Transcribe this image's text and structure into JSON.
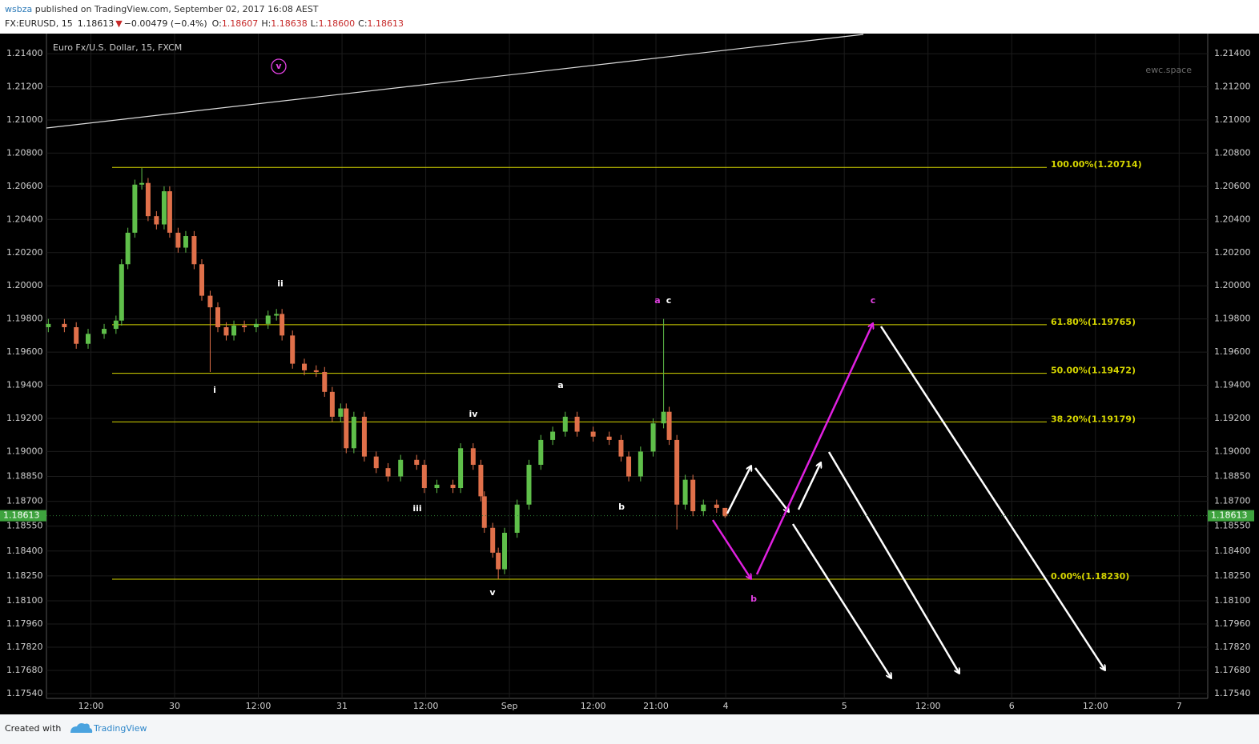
{
  "header": {
    "author": "wsbza",
    "published": " published on TradingView.com, September 02, 2017 16:08 AEST",
    "symbol": "FX:EURUSD, 15",
    "price": "1.18613",
    "arrow": "▼",
    "change": "−0.00479 (−0.4%)",
    "o_label": "O:",
    "o": "1.18607",
    "h_label": "H:",
    "h": "1.18638",
    "l_label": "L:",
    "l": "1.18600",
    "c_label": "C:",
    "c": "1.18613"
  },
  "footer": {
    "created": "Created with",
    "brand": "TradingView"
  },
  "chart_data": {
    "type": "candlestick",
    "title": "Euro Fx/U.S. Dollar, 15, FXCM",
    "watermark": "ewc.space",
    "up_color": "#5fbf4a",
    "down_color": "#e0704a",
    "grid": true,
    "x": [
      5.9,
      8.2,
      9.9,
      11.6,
      13.9,
      15.6,
      16.4,
      17.3,
      18.3,
      19.3,
      20.2,
      21.4,
      22.5,
      23.3,
      24.5,
      25.6,
      26.8,
      27.9,
      29.1,
      30.2,
      31.4,
      32.5,
      34.0,
      35.7,
      37.4,
      38.6,
      39.4,
      40.9,
      42.6,
      44.3,
      45.5,
      46.6,
      47.8,
      48.6,
      49.7,
      51.2,
      52.9,
      54.6,
      56.4,
      58.7,
      59.8,
      61.6,
      63.9,
      65.0,
      66.8,
      67.9,
      68.4,
      69.6,
      70.4,
      71.3,
      73.1,
      74.8,
      76.5,
      78.2,
      80.0,
      81.7,
      84.0,
      86.3,
      88.0,
      89.1,
      90.8,
      92.6,
      94.1,
      94.9,
      96.0,
      97.2,
      98.3,
      99.8,
      101.7,
      102.9
    ],
    "open": [
      1.1975,
      1.1977,
      1.1975,
      1.1965,
      1.1971,
      1.1974,
      1.1979,
      1.2013,
      1.2032,
      1.2061,
      1.2062,
      1.2042,
      1.2037,
      1.2057,
      1.2032,
      1.2023,
      1.203,
      1.2013,
      1.1994,
      1.1987,
      1.1975,
      1.197,
      1.1976,
      1.1975,
      1.1977,
      1.1982,
      1.1983,
      1.197,
      1.1953,
      1.1949,
      1.1948,
      1.1936,
      1.1921,
      1.1926,
      1.1902,
      1.1921,
      1.1897,
      1.189,
      1.1885,
      1.1895,
      1.1892,
      1.1878,
      1.188,
      1.1878,
      1.1902,
      1.1892,
      1.1873,
      1.1854,
      1.1839,
      1.1829,
      1.1851,
      1.1868,
      1.1892,
      1.1907,
      1.1912,
      1.1921,
      1.1912,
      1.1909,
      1.1907,
      1.1897,
      1.1885,
      1.19,
      1.1917,
      1.1924,
      1.1907,
      1.1868,
      1.1883,
      1.1864,
      1.1868,
      1.1866
    ],
    "high": [
      1.198,
      1.198,
      1.1978,
      1.1974,
      1.1977,
      1.1982,
      1.2016,
      1.2035,
      1.2064,
      1.2071,
      1.2065,
      1.2045,
      1.206,
      1.206,
      1.2035,
      1.2033,
      1.2033,
      1.2016,
      1.1997,
      1.199,
      1.1978,
      1.1979,
      1.1979,
      1.198,
      1.1985,
      1.1986,
      1.1986,
      1.1973,
      1.1956,
      1.1952,
      1.1951,
      1.1939,
      1.1929,
      1.1929,
      1.1924,
      1.1924,
      1.19,
      1.1893,
      1.1898,
      1.1898,
      1.1895,
      1.1883,
      1.1883,
      1.1905,
      1.1905,
      1.1895,
      1.1876,
      1.1857,
      1.1842,
      1.1854,
      1.1871,
      1.1895,
      1.191,
      1.1915,
      1.1924,
      1.1924,
      1.1915,
      1.1912,
      1.191,
      1.19,
      1.1903,
      1.192,
      1.198,
      1.1927,
      1.191,
      1.1886,
      1.1886,
      1.1871,
      1.1871,
      1.1864
    ],
    "low": [
      1.1972,
      1.1972,
      1.1962,
      1.1962,
      1.1968,
      1.1971,
      1.1976,
      1.201,
      1.2029,
      1.2058,
      1.2039,
      1.2034,
      1.2034,
      1.2029,
      1.202,
      1.202,
      1.201,
      1.1991,
      1.1948,
      1.1972,
      1.1967,
      1.1967,
      1.1972,
      1.1972,
      1.1974,
      1.1979,
      1.1967,
      1.195,
      1.1946,
      1.1945,
      1.1933,
      1.1918,
      1.1918,
      1.1899,
      1.1899,
      1.1894,
      1.1887,
      1.1882,
      1.1882,
      1.1889,
      1.1875,
      1.1875,
      1.1875,
      1.1875,
      1.1889,
      1.187,
      1.1851,
      1.1836,
      1.1823,
      1.1826,
      1.1848,
      1.1865,
      1.1889,
      1.1904,
      1.1909,
      1.1909,
      1.1906,
      1.1904,
      1.1894,
      1.1882,
      1.1882,
      1.1897,
      1.1914,
      1.1904,
      1.1853,
      1.1865,
      1.1861,
      1.1861,
      1.1863,
      1.186
    ],
    "close": [
      1.1977,
      1.1975,
      1.1965,
      1.1971,
      1.1974,
      1.1979,
      1.2013,
      1.2032,
      1.2061,
      1.2062,
      1.2042,
      1.2037,
      1.2057,
      1.2032,
      1.2023,
      1.203,
      1.2013,
      1.1994,
      1.1987,
      1.1975,
      1.197,
      1.1976,
      1.1975,
      1.1977,
      1.1982,
      1.1983,
      1.197,
      1.1953,
      1.1949,
      1.1948,
      1.1936,
      1.1921,
      1.1926,
      1.1902,
      1.1921,
      1.1897,
      1.189,
      1.1885,
      1.1895,
      1.1892,
      1.1878,
      1.188,
      1.1878,
      1.1902,
      1.1892,
      1.1873,
      1.1854,
      1.1839,
      1.1829,
      1.1851,
      1.1868,
      1.1892,
      1.1907,
      1.1912,
      1.1921,
      1.1912,
      1.1909,
      1.1907,
      1.1897,
      1.1885,
      1.19,
      1.1917,
      1.1924,
      1.1907,
      1.1868,
      1.1883,
      1.1864,
      1.1868,
      1.1866,
      1.1861
    ],
    "xlim": [
      5.63,
      172.1
    ],
    "xticks": [
      {
        "value": 12,
        "label": "12:00"
      },
      {
        "value": 24,
        "label": "30"
      },
      {
        "value": 36,
        "label": "12:00"
      },
      {
        "value": 48,
        "label": "31"
      },
      {
        "value": 60,
        "label": "12:00"
      },
      {
        "value": 72,
        "label": "Sep"
      },
      {
        "value": 84,
        "label": "12:00"
      },
      {
        "value": 93,
        "label": "21:00"
      },
      {
        "value": 103,
        "label": "4"
      },
      {
        "value": 120,
        "label": "5"
      },
      {
        "value": 132,
        "label": "12:00"
      },
      {
        "value": 144,
        "label": "6"
      },
      {
        "value": 156,
        "label": "12:00"
      },
      {
        "value": 168,
        "label": "7"
      }
    ],
    "ylim": [
      1.17511,
      1.21521
    ],
    "yticks": [
      {
        "value": 1.214,
        "label": "1.21400"
      },
      {
        "value": 1.212,
        "label": "1.21200"
      },
      {
        "value": 1.21,
        "label": "1.21000"
      },
      {
        "value": 1.208,
        "label": "1.20800"
      },
      {
        "value": 1.206,
        "label": "1.20600"
      },
      {
        "value": 1.204,
        "label": "1.20400"
      },
      {
        "value": 1.202,
        "label": "1.20200"
      },
      {
        "value": 1.2,
        "label": "1.20000"
      },
      {
        "value": 1.198,
        "label": "1.19800"
      },
      {
        "value": 1.196,
        "label": "1.19600"
      },
      {
        "value": 1.194,
        "label": "1.19400"
      },
      {
        "value": 1.192,
        "label": "1.19200"
      },
      {
        "value": 1.19,
        "label": "1.19000"
      },
      {
        "value": 1.1885,
        "label": "1.18850"
      },
      {
        "value": 1.187,
        "label": "1.18700"
      },
      {
        "value": 1.1855,
        "label": "1.18550"
      },
      {
        "value": 1.184,
        "label": "1.18400"
      },
      {
        "value": 1.1825,
        "label": "1.18250"
      },
      {
        "value": 1.181,
        "label": "1.18100"
      },
      {
        "value": 1.1796,
        "label": "1.17960"
      },
      {
        "value": 1.1782,
        "label": "1.17820"
      },
      {
        "value": 1.1768,
        "label": "1.17680"
      },
      {
        "value": 1.1754,
        "label": "1.17540"
      }
    ],
    "last_price": {
      "value": 1.18613,
      "label": "1.18613"
    },
    "fib_color": "#d6d600",
    "fib_levels": [
      {
        "value": 1.20714,
        "label": "100.00%(1.20714)"
      },
      {
        "value": 1.19765,
        "label": "61.80%(1.19765)"
      },
      {
        "value": 1.19472,
        "label": "50.00%(1.19472)"
      },
      {
        "value": 1.19179,
        "label": "38.20%(1.19179)"
      },
      {
        "value": 1.1823,
        "label": "0.00%(1.18230)"
      }
    ],
    "annotations": [
      {
        "text": "v",
        "color": "#e040e0"
      },
      {
        "text": "ii",
        "color": "#ffffff"
      },
      {
        "text": "i",
        "color": "#ffffff"
      },
      {
        "text": "iii",
        "color": "#ffffff"
      },
      {
        "text": "iv",
        "color": "#ffffff"
      },
      {
        "text": "v",
        "color": "#ffffff"
      },
      {
        "text": "a",
        "color": "#ffffff"
      },
      {
        "text": "b",
        "color": "#ffffff"
      },
      {
        "text": "a",
        "color": "#e040e0"
      },
      {
        "text": "c",
        "color": "#ffffff"
      },
      {
        "text": "c",
        "color": "#e040e0"
      },
      {
        "text": "b",
        "color": "#e040e0"
      }
    ]
  }
}
